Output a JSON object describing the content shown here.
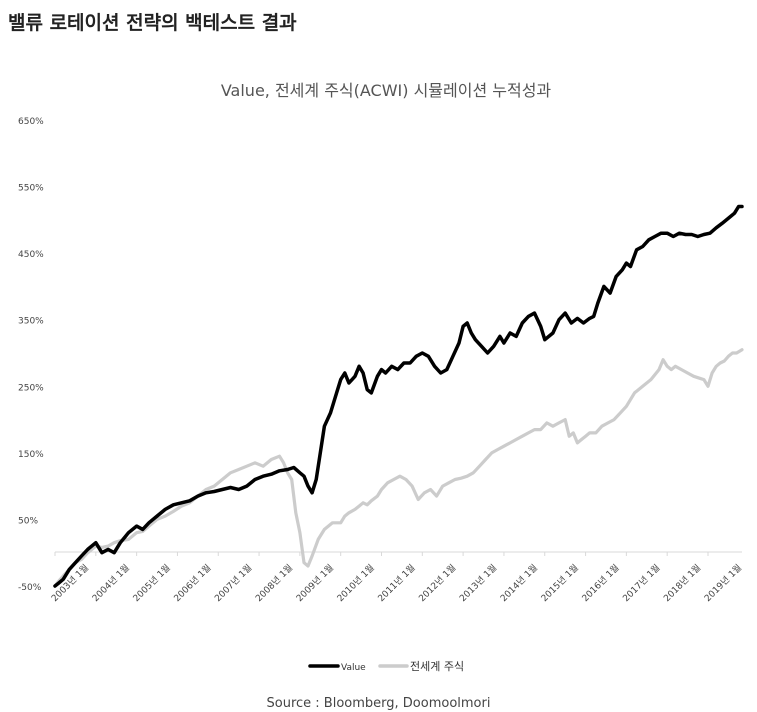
{
  "page": {
    "heading": "밸류 로테이션 전략의 백테스트 결과",
    "source": "Source : Bloomberg, Doomoolmori"
  },
  "chart_data": {
    "type": "line",
    "title": "Value, 전세계 주식(ACWI) 시뮬레이션 누적성과",
    "xlabel": "",
    "ylabel": "",
    "ylim": [
      -50,
      650
    ],
    "yticks": [
      -50,
      50,
      150,
      250,
      350,
      450,
      550,
      650
    ],
    "ytick_labels": [
      "-50%",
      "50%",
      "150%",
      "250%",
      "350%",
      "450%",
      "550%",
      "650%"
    ],
    "xlim": [
      2003.0,
      2019.833
    ],
    "xticks": [
      2003,
      2004,
      2005,
      2006,
      2007,
      2008,
      2009,
      2010,
      2011,
      2012,
      2013,
      2014,
      2015,
      2016,
      2017,
      2018,
      2019
    ],
    "xtick_labels": [
      "2003년 1월",
      "2004년 1월",
      "2005년 1월",
      "2006년 1월",
      "2007년 1월",
      "2008년 1월",
      "2009년 1월",
      "2010년 1월",
      "2011년 1월",
      "2012년 1월",
      "2013년 1월",
      "2014년 1월",
      "2015년 1월",
      "2016년 1월",
      "2017년 1월",
      "2018년 1월",
      "2019년 1월"
    ],
    "grid": false,
    "legend": "bottom",
    "series": [
      {
        "name": "Value",
        "color": "#000000",
        "x": [
          2003.0,
          2003.1,
          2003.2,
          2003.35,
          2003.5,
          2003.65,
          2003.8,
          2004.0,
          2004.15,
          2004.3,
          2004.45,
          2004.6,
          2004.8,
          2005.0,
          2005.15,
          2005.3,
          2005.5,
          2005.7,
          2005.9,
          2006.1,
          2006.3,
          2006.5,
          2006.7,
          2006.9,
          2007.1,
          2007.3,
          2007.5,
          2007.7,
          2007.9,
          2008.1,
          2008.3,
          2008.5,
          2008.7,
          2008.85,
          2009.0,
          2009.1,
          2009.2,
          2009.3,
          2009.4,
          2009.5,
          2009.6,
          2009.75,
          2009.9,
          2010.0,
          2010.1,
          2010.2,
          2010.35,
          2010.45,
          2010.55,
          2010.65,
          2010.75,
          2010.9,
          2011.0,
          2011.1,
          2011.25,
          2011.4,
          2011.55,
          2011.7,
          2011.85,
          2012.0,
          2012.15,
          2012.3,
          2012.45,
          2012.6,
          2012.75,
          2012.9,
          2013.0,
          2013.1,
          2013.2,
          2013.3,
          2013.45,
          2013.6,
          2013.75,
          2013.9,
          2014.0,
          2014.15,
          2014.3,
          2014.45,
          2014.6,
          2014.75,
          2014.9,
          2015.0,
          2015.1,
          2015.2,
          2015.35,
          2015.5,
          2015.65,
          2015.8,
          2015.95,
          2016.1,
          2016.2,
          2016.3,
          2016.45,
          2016.6,
          2016.75,
          2016.9,
          2017.0,
          2017.1,
          2017.25,
          2017.4,
          2017.55,
          2017.7,
          2017.85,
          2018.0,
          2018.15,
          2018.3,
          2018.45,
          2018.6,
          2018.75,
          2018.9,
          2019.05,
          2019.2,
          2019.35,
          2019.45,
          2019.55,
          2019.65,
          2019.75,
          2019.833
        ],
        "values": [
          -50,
          -45,
          -40,
          -25,
          -15,
          -5,
          5,
          15,
          0,
          5,
          0,
          15,
          30,
          40,
          35,
          45,
          55,
          65,
          72,
          75,
          78,
          85,
          90,
          92,
          95,
          98,
          95,
          100,
          110,
          115,
          118,
          123,
          125,
          128,
          120,
          115,
          100,
          90,
          110,
          150,
          190,
          210,
          240,
          260,
          270,
          255,
          265,
          280,
          270,
          245,
          240,
          265,
          275,
          270,
          280,
          275,
          285,
          285,
          295,
          300,
          295,
          280,
          270,
          275,
          295,
          315,
          340,
          345,
          330,
          320,
          310,
          300,
          310,
          325,
          315,
          330,
          325,
          345,
          355,
          360,
          340,
          320,
          325,
          330,
          350,
          360,
          345,
          352,
          345,
          352,
          355,
          375,
          400,
          390,
          415,
          425,
          435,
          430,
          455,
          460,
          470,
          475,
          480,
          480,
          475,
          480,
          478,
          478,
          475,
          478,
          480,
          488,
          495,
          500,
          505,
          510,
          520,
          520
        ]
      },
      {
        "name": "전세계 주식",
        "color": "#cccccc",
        "x": [
          2003.0,
          2003.1,
          2003.2,
          2003.35,
          2003.5,
          2003.65,
          2003.8,
          2004.0,
          2004.15,
          2004.3,
          2004.45,
          2004.6,
          2004.8,
          2005.0,
          2005.15,
          2005.3,
          2005.5,
          2005.7,
          2005.9,
          2006.1,
          2006.3,
          2006.5,
          2006.7,
          2006.9,
          2007.1,
          2007.3,
          2007.5,
          2007.7,
          2007.9,
          2008.1,
          2008.3,
          2008.5,
          2008.6,
          2008.7,
          2008.8,
          2008.9,
          2009.0,
          2009.1,
          2009.2,
          2009.3,
          2009.45,
          2009.6,
          2009.8,
          2010.0,
          2010.1,
          2010.2,
          2010.35,
          2010.45,
          2010.55,
          2010.65,
          2010.75,
          2010.9,
          2011.0,
          2011.15,
          2011.3,
          2011.45,
          2011.6,
          2011.75,
          2011.9,
          2012.05,
          2012.2,
          2012.35,
          2012.5,
          2012.65,
          2012.8,
          2012.95,
          2013.1,
          2013.25,
          2013.4,
          2013.55,
          2013.7,
          2013.85,
          2014.0,
          2014.15,
          2014.3,
          2014.45,
          2014.6,
          2014.75,
          2014.9,
          2015.05,
          2015.2,
          2015.35,
          2015.5,
          2015.6,
          2015.7,
          2015.8,
          2015.9,
          2016.0,
          2016.1,
          2016.25,
          2016.4,
          2016.55,
          2016.7,
          2016.85,
          2017.0,
          2017.2,
          2017.4,
          2017.6,
          2017.8,
          2017.9,
          2018.0,
          2018.1,
          2018.2,
          2018.35,
          2018.5,
          2018.65,
          2018.8,
          2018.9,
          2019.0,
          2019.1,
          2019.2,
          2019.3,
          2019.4,
          2019.5,
          2019.6,
          2019.7,
          2019.833
        ],
        "values": [
          -50,
          -42,
          -35,
          -25,
          -15,
          -10,
          0,
          10,
          8,
          10,
          15,
          18,
          20,
          30,
          32,
          40,
          50,
          55,
          62,
          70,
          75,
          85,
          95,
          100,
          110,
          120,
          125,
          130,
          135,
          130,
          140,
          145,
          135,
          120,
          110,
          60,
          30,
          -15,
          -20,
          -5,
          20,
          35,
          45,
          45,
          55,
          60,
          65,
          70,
          75,
          72,
          78,
          85,
          95,
          105,
          110,
          115,
          110,
          100,
          80,
          90,
          95,
          85,
          100,
          105,
          110,
          112,
          115,
          120,
          130,
          140,
          150,
          155,
          160,
          165,
          170,
          175,
          180,
          185,
          185,
          195,
          190,
          195,
          200,
          175,
          180,
          165,
          170,
          175,
          180,
          180,
          190,
          195,
          200,
          210,
          220,
          240,
          250,
          260,
          275,
          290,
          280,
          275,
          280,
          275,
          270,
          265,
          262,
          260,
          250,
          270,
          280,
          285,
          288,
          295,
          300,
          300,
          305
        ]
      }
    ]
  }
}
